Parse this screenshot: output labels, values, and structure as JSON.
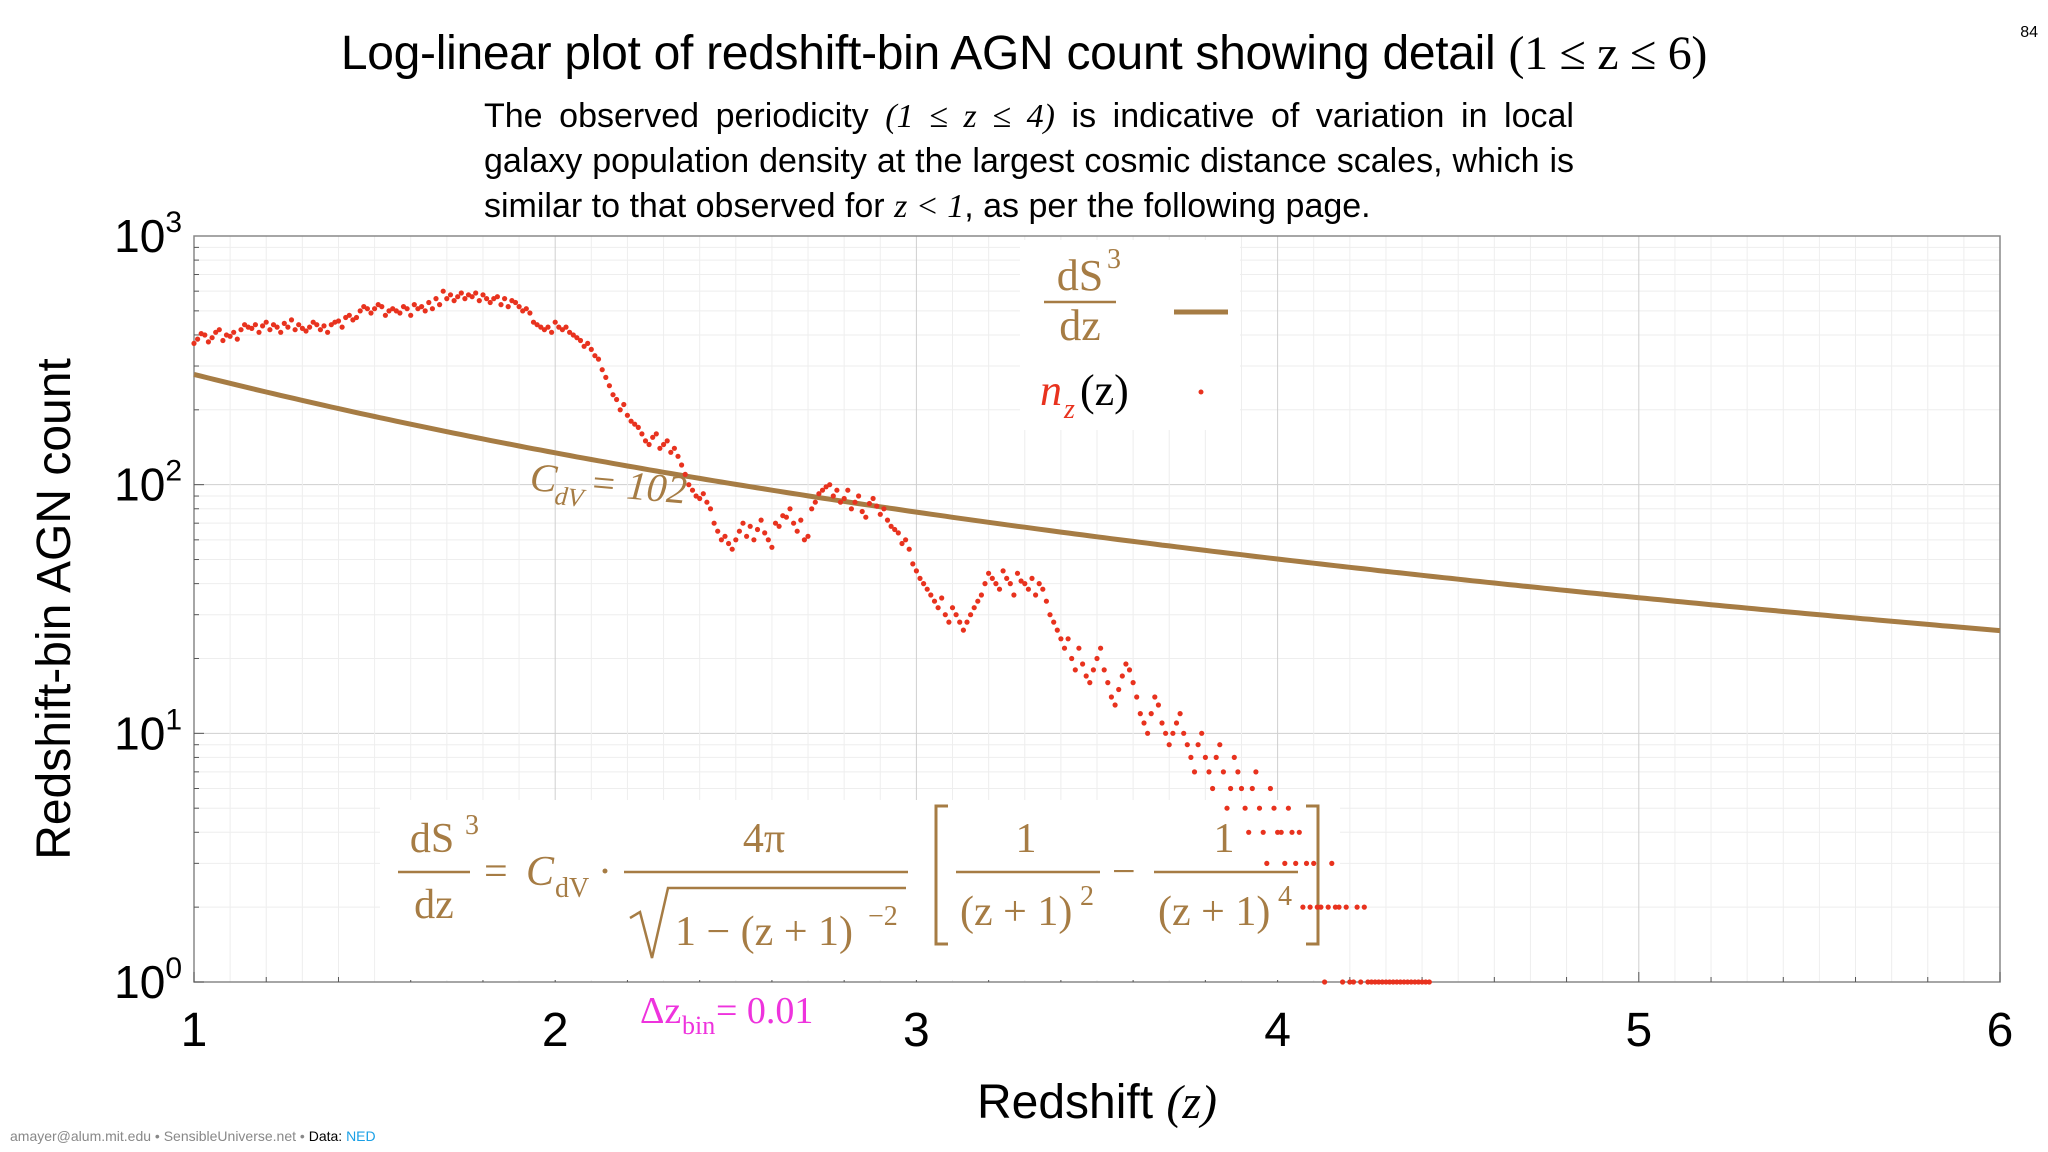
{
  "page_number": "84",
  "title": {
    "main": "Log-linear plot of redshift-bin AGN count showing detail ",
    "math": "(1 ≤ z ≤ 6)"
  },
  "subtitle": {
    "part1": "The observed periodicity ",
    "math1": "(1 ≤ z ≤ 4)",
    "part2": " is indicative of variation in local galaxy population density at the largest cosmic distance scales, which is similar to that observed for ",
    "math2": "z < 1",
    "part3": ", as per the following page."
  },
  "footer": {
    "credit": "amayer@alum.mit.edu • SensibleUniverse.net • ",
    "data_label": "Data: ",
    "data_source": "NED"
  },
  "chart_data": {
    "type": "scatter",
    "xlabel": "Redshift",
    "xlabel_math": "(z)",
    "ylabel": "Redshift-bin AGN count",
    "xlim": [
      1,
      6
    ],
    "ylim": [
      1,
      1000
    ],
    "y_scale": "log",
    "grid": true,
    "x_ticks": [
      "1",
      "2",
      "3",
      "4",
      "5",
      "6"
    ],
    "y_ticks": [
      {
        "base": "10",
        "exp": "0"
      },
      {
        "base": "10",
        "exp": "1"
      },
      {
        "base": "10",
        "exp": "2"
      },
      {
        "base": "10",
        "exp": "3"
      }
    ],
    "legend": {
      "position": "top-center",
      "curve_label": {
        "num": "dS",
        "num_sup": "3",
        "den": "dz"
      },
      "points_label": {
        "n": "n",
        "sub": "z",
        "arg": "(z)"
      }
    },
    "colors": {
      "curve": "#a67c44",
      "points": "#e8321e",
      "annotation": "#a67c44",
      "bin_label": "#ee33dd"
    },
    "annotations": {
      "cdv_label": "C",
      "cdv_sub": "dV",
      "cdv_value": " = 102",
      "bin_width_prefix": "Δz",
      "bin_width_sub": "bin",
      "bin_width_value": " = 0.01",
      "formula": {
        "lhs_num": "dS",
        "lhs_sup": "3",
        "lhs_den": "dz",
        "eq": "=",
        "c": "C",
        "c_sub": "dV",
        "dot": "·",
        "frac_num": "4π",
        "sqrt_body": "1 − (z + 1)",
        "sqrt_exp": "−2",
        "t1_num": "1",
        "t1_den": "(z + 1)",
        "t1_exp": "2",
        "minus": "−",
        "t2_num": "1",
        "t2_den": "(z + 1)",
        "t2_exp": "4"
      }
    },
    "series": [
      {
        "name": "dS³/dz",
        "kind": "line",
        "formula": "C_dV · 4π / sqrt(1 − (z+1)^−2) · [1/(z+1)^2 − 1/(z+1)^4]",
        "parameters": {
          "C_dV": 102
        }
      },
      {
        "name": "n_z(z)",
        "kind": "points",
        "x_start": 1.0,
        "x_step": 0.01,
        "values": [
          370,
          385,
          405,
          400,
          375,
          390,
          410,
          420,
          380,
          400,
          395,
          410,
          385,
          420,
          440,
          430,
          425,
          440,
          410,
          435,
          450,
          420,
          440,
          430,
          410,
          445,
          430,
          460,
          420,
          440,
          425,
          415,
          430,
          450,
          440,
          420,
          435,
          410,
          440,
          450,
          455,
          430,
          470,
          480,
          460,
          470,
          500,
          520,
          510,
          490,
          510,
          530,
          520,
          480,
          500,
          510,
          500,
          490,
          520,
          510,
          480,
          530,
          510,
          520,
          500,
          540,
          510,
          560,
          530,
          600,
          560,
          580,
          550,
          570,
          590,
          560,
          580,
          570,
          590,
          550,
          580,
          560,
          540,
          560,
          570,
          530,
          560,
          520,
          550,
          540,
          520,
          500,
          510,
          490,
          450,
          440,
          430,
          420,
          430,
          410,
          450,
          430,
          420,
          430,
          410,
          400,
          390,
          380,
          360,
          370,
          350,
          330,
          320,
          290,
          270,
          250,
          230,
          220,
          200,
          210,
          190,
          180,
          175,
          170,
          160,
          150,
          145,
          155,
          160,
          140,
          145,
          150,
          135,
          140,
          130,
          120,
          110,
          100,
          95,
          90,
          88,
          92,
          85,
          80,
          70,
          65,
          60,
          62,
          58,
          55,
          60,
          65,
          70,
          62,
          68,
          60,
          66,
          72,
          64,
          60,
          56,
          70,
          68,
          75,
          74,
          80,
          70,
          65,
          72,
          60,
          62,
          80,
          85,
          92,
          95,
          98,
          100,
          90,
          95,
          85,
          88,
          95,
          80,
          85,
          90,
          78,
          74,
          84,
          88,
          82,
          76,
          80,
          72,
          68,
          66,
          64,
          58,
          60,
          55,
          48,
          45,
          42,
          40,
          38,
          36,
          34,
          32,
          35,
          30,
          28,
          32,
          30,
          28,
          26,
          28,
          30,
          32,
          34,
          36,
          40,
          44,
          42,
          40,
          38,
          45,
          42,
          40,
          36,
          44,
          41,
          40,
          38,
          42,
          36,
          40,
          38,
          34,
          30,
          28,
          26,
          24,
          22,
          24,
          20,
          18,
          22,
          19,
          17,
          16,
          18,
          20,
          22,
          18,
          16,
          14,
          13,
          15,
          17,
          19,
          18,
          16,
          14,
          12,
          11,
          10,
          12,
          14,
          13,
          11,
          10,
          9,
          10,
          11,
          12,
          10,
          9,
          8,
          7,
          9,
          10,
          8,
          7,
          6,
          8,
          9,
          7,
          5,
          6,
          8,
          7,
          6,
          5,
          4,
          6,
          7,
          5,
          4,
          3,
          6,
          5,
          4,
          4,
          3,
          5,
          4,
          3,
          4,
          2,
          3,
          2,
          3,
          2,
          2,
          1,
          2,
          3,
          2,
          2,
          1,
          2,
          1,
          1,
          2,
          1,
          2,
          1,
          1,
          1,
          1,
          1,
          1,
          1,
          1,
          1,
          1,
          1,
          1,
          1,
          1,
          1,
          1,
          1,
          1
        ]
      }
    ]
  }
}
